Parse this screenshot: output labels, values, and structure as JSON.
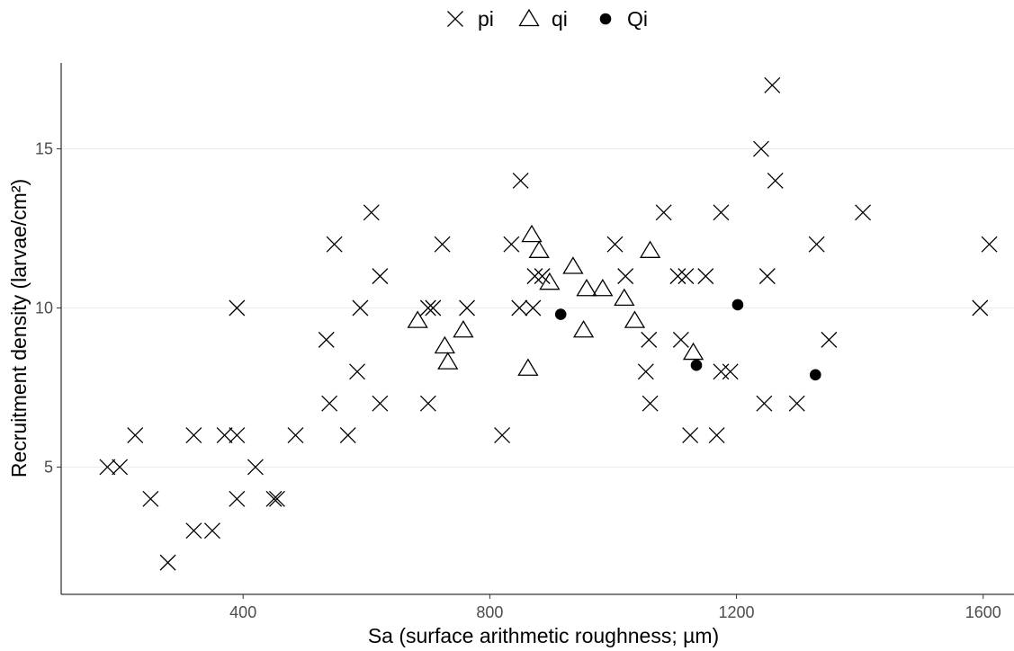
{
  "chart_data": {
    "type": "scatter",
    "title": "",
    "xlabel": "Sa (surface arithmetic roughness; µm)",
    "ylabel": "Recruitment density (larvae/cm²)",
    "xlim": [
      105,
      1650
    ],
    "ylim": [
      1.0,
      17.7
    ],
    "x_ticks": [
      400,
      800,
      1200,
      1600
    ],
    "y_ticks": [
      5,
      10,
      15
    ],
    "grid": "horizontal major lines",
    "legend_position": "top",
    "series": [
      {
        "name": "pi",
        "marker": "cross",
        "points": [
          [
            180,
            5
          ],
          [
            200,
            5
          ],
          [
            225,
            6
          ],
          [
            250,
            4
          ],
          [
            278,
            2
          ],
          [
            320,
            6
          ],
          [
            320,
            3
          ],
          [
            350,
            3
          ],
          [
            370,
            6
          ],
          [
            390,
            6
          ],
          [
            390,
            10
          ],
          [
            390,
            4
          ],
          [
            420,
            5
          ],
          [
            450,
            4
          ],
          [
            455,
            4
          ],
          [
            485,
            6
          ],
          [
            535,
            9
          ],
          [
            540,
            7
          ],
          [
            548,
            12
          ],
          [
            570,
            6
          ],
          [
            585,
            8
          ],
          [
            590,
            10
          ],
          [
            608,
            13
          ],
          [
            622,
            11
          ],
          [
            622,
            7
          ],
          [
            700,
            7
          ],
          [
            700,
            10
          ],
          [
            708,
            10
          ],
          [
            723,
            12
          ],
          [
            763,
            10
          ],
          [
            820,
            6
          ],
          [
            835,
            12
          ],
          [
            848,
            10
          ],
          [
            850,
            14
          ],
          [
            870,
            10
          ],
          [
            873,
            11
          ],
          [
            885,
            11
          ],
          [
            1003,
            12
          ],
          [
            1020,
            11
          ],
          [
            1053,
            8
          ],
          [
            1058,
            9
          ],
          [
            1060,
            7
          ],
          [
            1082,
            13
          ],
          [
            1105,
            11
          ],
          [
            1110,
            9
          ],
          [
            1118,
            11
          ],
          [
            1125,
            6
          ],
          [
            1150,
            11
          ],
          [
            1168,
            6
          ],
          [
            1175,
            13
          ],
          [
            1175,
            8
          ],
          [
            1190,
            8
          ],
          [
            1240,
            15
          ],
          [
            1245,
            7
          ],
          [
            1250,
            11
          ],
          [
            1258,
            17
          ],
          [
            1263,
            14
          ],
          [
            1298,
            7
          ],
          [
            1330,
            12
          ],
          [
            1350,
            9
          ],
          [
            1405,
            13
          ],
          [
            1595,
            10
          ],
          [
            1610,
            12
          ]
        ]
      },
      {
        "name": "qi",
        "marker": "triangle",
        "points": [
          [
            683,
            9.6
          ],
          [
            727,
            8.8
          ],
          [
            732,
            8.3
          ],
          [
            757,
            9.3
          ],
          [
            862,
            8.1
          ],
          [
            868,
            12.3
          ],
          [
            880,
            11.8
          ],
          [
            897,
            10.8
          ],
          [
            935,
            11.3
          ],
          [
            952,
            9.3
          ],
          [
            957,
            10.6
          ],
          [
            983,
            10.6
          ],
          [
            1018,
            10.3
          ],
          [
            1035,
            9.6
          ],
          [
            1060,
            11.8
          ],
          [
            1130,
            8.6
          ]
        ]
      },
      {
        "name": "Qi",
        "marker": "filled-circle",
        "points": [
          [
            915,
            9.8
          ],
          [
            1135,
            8.2
          ],
          [
            1202,
            10.1
          ],
          [
            1328,
            7.9
          ]
        ]
      }
    ]
  },
  "colors": {
    "marker": "#000000",
    "grid": "#ebebeb",
    "axis": "#000000",
    "tick_text": "#4d4d4d"
  }
}
